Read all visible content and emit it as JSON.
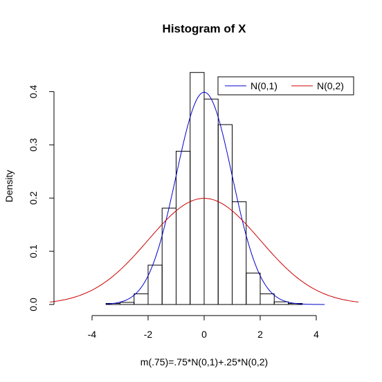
{
  "chart_data": {
    "type": "bar",
    "title": "Histogram of X",
    "xlabel": "m(.75)=.75*N(0,1)+.25*N(0,2)",
    "ylabel": "Density",
    "xlim": [
      -4,
      4
    ],
    "ylim": [
      0,
      0.4
    ],
    "x_ticks": [
      "-4",
      "-2",
      "0",
      "2",
      "4"
    ],
    "y_ticks": [
      "0.0",
      "0.1",
      "0.2",
      "0.3",
      "0.4"
    ],
    "bin_width": 0.5,
    "bins": [
      {
        "x0": -3.5,
        "x1": -3.0,
        "density": 0.002
      },
      {
        "x0": -3.0,
        "x1": -2.5,
        "density": 0.004
      },
      {
        "x0": -2.5,
        "x1": -2.0,
        "density": 0.02
      },
      {
        "x0": -2.0,
        "x1": -1.5,
        "density": 0.074
      },
      {
        "x0": -1.5,
        "x1": -1.0,
        "density": 0.181
      },
      {
        "x0": -1.0,
        "x1": -0.5,
        "density": 0.288
      },
      {
        "x0": -0.5,
        "x1": 0.0,
        "density": 0.436
      },
      {
        "x0": 0.0,
        "x1": 0.5,
        "density": 0.386
      },
      {
        "x0": 0.5,
        "x1": 1.0,
        "density": 0.338
      },
      {
        "x0": 1.0,
        "x1": 1.5,
        "density": 0.193
      },
      {
        "x0": 1.5,
        "x1": 2.0,
        "density": 0.059
      },
      {
        "x0": 2.0,
        "x1": 2.5,
        "density": 0.02
      },
      {
        "x0": 2.5,
        "x1": 3.0,
        "density": 0.005
      },
      {
        "x0": 3.0,
        "x1": 3.5,
        "density": 0.002
      }
    ],
    "curves": [
      {
        "name": "N(0,1)",
        "color": "#0000cc",
        "mean": 0,
        "sd": 1,
        "x_range": [
          -3.5,
          4.3
        ]
      },
      {
        "name": "N(0,2)",
        "color": "#cc0000",
        "mean": 0,
        "sd": 2,
        "x_range": [
          -5.5,
          5.5
        ]
      }
    ],
    "legend_position": "top-right",
    "grid": false
  }
}
